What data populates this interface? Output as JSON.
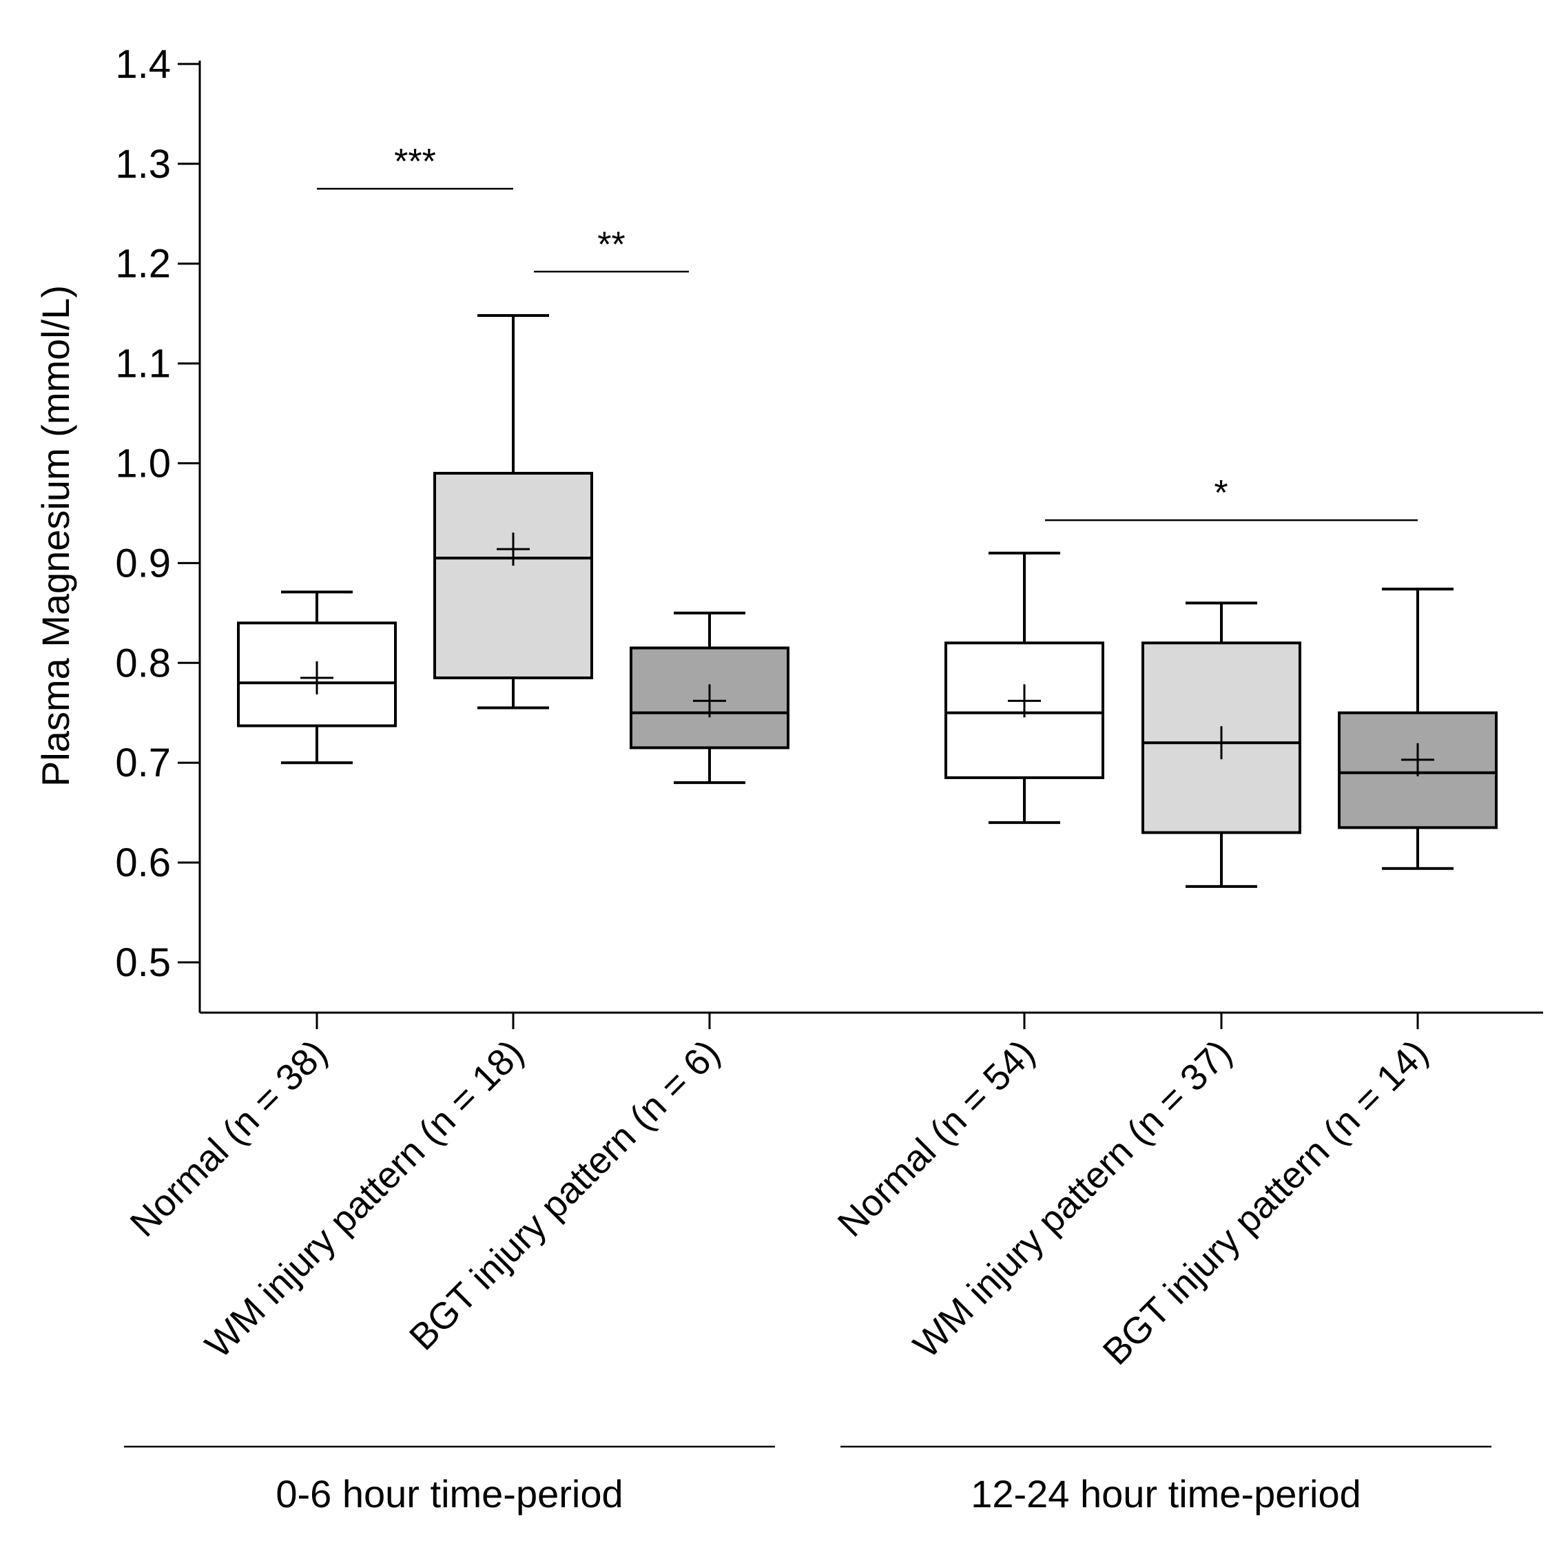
{
  "chart_data": {
    "type": "boxplot",
    "ylabel": "Plasma Magnesium (mmol/L)",
    "ylim": [
      0.45,
      1.4
    ],
    "yticks": [
      "0.5",
      "0.6",
      "0.7",
      "0.8",
      "0.9",
      "1.0",
      "1.1",
      "1.2",
      "1.3",
      "1.4"
    ],
    "ytick_values": [
      0.5,
      0.6,
      0.7,
      0.8,
      0.9,
      1.0,
      1.1,
      1.2,
      1.3,
      1.4
    ],
    "grid": false,
    "colors": {
      "Normal": "#ffffff",
      "WM": "#d9d9d9",
      "BGT": "#a6a6a6"
    },
    "groups": [
      {
        "label": "0-6 hour time-period"
      },
      {
        "label": "12-24 hour time-period"
      }
    ],
    "boxes": [
      {
        "label": "Normal (n = 38)",
        "group": 0,
        "fill": "Normal",
        "min": 0.7,
        "q1": 0.737,
        "median": 0.78,
        "q3": 0.84,
        "max": 0.871,
        "mean": 0.785
      },
      {
        "label": "WM injury pattern (n = 18)",
        "group": 0,
        "fill": "WM",
        "min": 0.755,
        "q1": 0.785,
        "median": 0.905,
        "q3": 0.99,
        "max": 1.148,
        "mean": 0.914
      },
      {
        "label": "BGT injury pattern (n = 6)",
        "group": 0,
        "fill": "BGT",
        "min": 0.68,
        "q1": 0.715,
        "median": 0.75,
        "q3": 0.815,
        "max": 0.85,
        "mean": 0.762
      },
      {
        "label": "Normal (n = 54)",
        "group": 1,
        "fill": "Normal",
        "min": 0.64,
        "q1": 0.685,
        "median": 0.75,
        "q3": 0.82,
        "max": 0.91,
        "mean": 0.762
      },
      {
        "label": "WM injury pattern (n = 37)",
        "group": 1,
        "fill": "WM",
        "min": 0.576,
        "q1": 0.63,
        "median": 0.72,
        "q3": 0.82,
        "max": 0.86,
        "mean": 0.72
      },
      {
        "label": "BGT injury pattern (n = 14)",
        "group": 1,
        "fill": "BGT",
        "min": 0.594,
        "q1": 0.635,
        "median": 0.69,
        "q3": 0.75,
        "max": 0.874,
        "mean": 0.703
      }
    ],
    "significance": [
      {
        "from": 0,
        "to": 1,
        "y": 1.275,
        "text": "***"
      },
      {
        "from": 1,
        "to": 2,
        "y": 1.192,
        "text": "**"
      },
      {
        "from": 3,
        "to": 5,
        "y": 0.943,
        "text": "*"
      }
    ]
  }
}
